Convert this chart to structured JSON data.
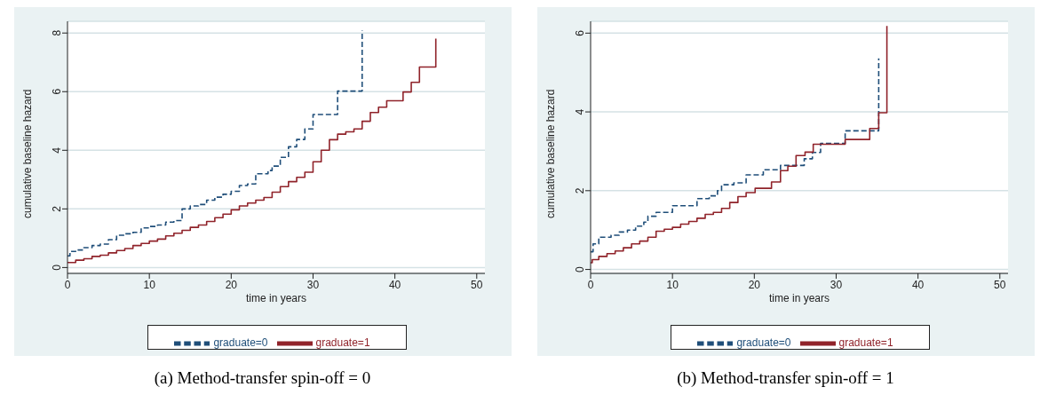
{
  "chart_data": [
    {
      "type": "step",
      "title": "(a) Method-transfer spin-off = 0",
      "xlabel": "time in years",
      "ylabel": "cumulative baseline hazard",
      "xlim": [
        0,
        51
      ],
      "xticks": [
        0,
        10,
        20,
        30,
        40,
        50
      ],
      "ylim": [
        -0.2,
        8.4
      ],
      "yticks": [
        0,
        2,
        4,
        6,
        8
      ],
      "grid": "y",
      "legend": "bottom",
      "series": [
        {
          "name": "graduate=0",
          "color": "#1f4e79",
          "line_style": "dashed",
          "x": [
            0,
            0.3,
            1,
            2,
            3,
            4,
            5,
            6,
            7,
            8,
            9,
            10,
            11,
            12,
            13,
            14,
            15,
            16,
            17,
            18,
            19,
            20,
            21,
            22,
            23,
            24.5,
            25,
            26,
            27,
            28,
            29,
            30,
            33,
            36,
            36
          ],
          "values": [
            0.4,
            0.55,
            0.6,
            0.68,
            0.75,
            0.8,
            0.95,
            1.1,
            1.15,
            1.2,
            1.35,
            1.4,
            1.45,
            1.55,
            1.6,
            2.0,
            2.1,
            2.15,
            2.3,
            2.4,
            2.5,
            2.6,
            2.8,
            2.85,
            3.2,
            3.31,
            3.46,
            3.76,
            4.12,
            4.37,
            4.73,
            5.22,
            6.02,
            6.02,
            8.08
          ]
        },
        {
          "name": "graduate=1",
          "color": "#90232a",
          "line_style": "solid",
          "x": [
            0,
            1,
            2,
            3,
            4,
            5,
            6,
            7,
            8,
            9,
            10,
            11,
            12,
            13,
            14,
            15,
            16,
            17,
            18,
            19,
            20,
            21,
            22,
            23,
            24,
            25,
            26,
            27,
            28,
            29,
            30,
            31,
            32,
            33,
            34,
            35,
            36,
            37,
            38,
            39,
            41,
            42,
            43,
            45,
            45
          ],
          "values": [
            0.17,
            0.25,
            0.3,
            0.38,
            0.42,
            0.5,
            0.58,
            0.65,
            0.75,
            0.82,
            0.9,
            0.97,
            1.08,
            1.17,
            1.27,
            1.37,
            1.45,
            1.57,
            1.7,
            1.82,
            1.97,
            2.1,
            2.2,
            2.3,
            2.39,
            2.57,
            2.76,
            2.93,
            3.08,
            3.25,
            3.61,
            4.0,
            4.36,
            4.55,
            4.63,
            4.73,
            4.99,
            5.29,
            5.47,
            5.69,
            5.99,
            6.32,
            6.84,
            6.84,
            7.81
          ]
        }
      ]
    },
    {
      "type": "step",
      "title": "(b) Method-transfer spin-off = 1",
      "xlabel": "time in years",
      "ylabel": "cumulative baseline hazard",
      "xlim": [
        0,
        51
      ],
      "xticks": [
        0,
        10,
        20,
        30,
        40,
        50
      ],
      "ylim": [
        -0.1,
        6.3
      ],
      "yticks": [
        0,
        2,
        4,
        6
      ],
      "grid": "y",
      "legend": "bottom",
      "series": [
        {
          "name": "graduate=0",
          "color": "#1f4e79",
          "line_style": "dashed",
          "x": [
            0,
            0.3,
            1,
            2.5,
            3.5,
            4.5,
            5.5,
            6.5,
            7,
            8,
            10,
            13,
            14.5,
            15.5,
            16,
            17.5,
            19,
            21.1,
            23.2,
            26.1,
            27.1,
            28.1,
            31.1,
            35.2,
            35.2
          ],
          "values": [
            0.45,
            0.65,
            0.82,
            0.87,
            0.95,
            1.0,
            1.1,
            1.2,
            1.35,
            1.45,
            1.62,
            1.8,
            1.87,
            2.0,
            2.15,
            2.2,
            2.4,
            2.53,
            2.64,
            2.81,
            2.97,
            3.2,
            3.52,
            3.52,
            5.36
          ]
        },
        {
          "name": "graduate=1",
          "color": "#90232a",
          "line_style": "solid",
          "x": [
            0,
            0.2,
            1,
            2,
            3,
            4,
            5,
            6,
            7,
            8,
            9,
            10,
            11,
            12,
            13,
            14,
            15,
            16,
            17,
            18,
            19,
            20.1,
            22.1,
            23.2,
            24.1,
            25.1,
            26.2,
            27.2,
            31.1,
            34.1,
            35.2,
            36.2,
            36.2
          ],
          "values": [
            0.17,
            0.25,
            0.33,
            0.4,
            0.47,
            0.55,
            0.65,
            0.72,
            0.82,
            0.97,
            1.02,
            1.07,
            1.15,
            1.22,
            1.3,
            1.4,
            1.45,
            1.55,
            1.7,
            1.85,
            1.95,
            2.06,
            2.22,
            2.51,
            2.62,
            2.89,
            2.98,
            3.18,
            3.3,
            3.58,
            3.98,
            3.98,
            6.18
          ]
        }
      ]
    }
  ]
}
